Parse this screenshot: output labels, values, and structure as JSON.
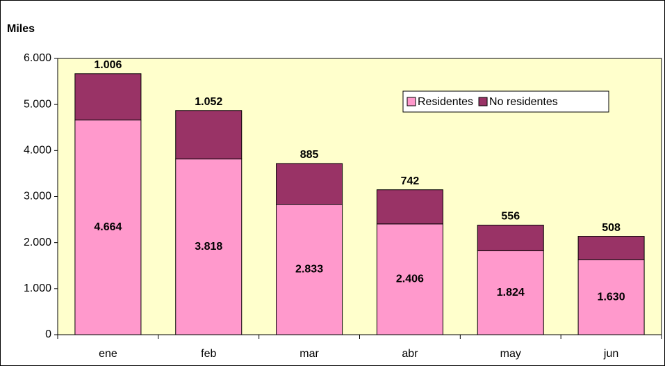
{
  "chart_data": {
    "type": "stacked_bar",
    "y_axis_label": "Miles",
    "categories": [
      "ene",
      "feb",
      "mar",
      "abr",
      "may",
      "jun"
    ],
    "series": [
      {
        "name": "Residentes",
        "color": "#ff99cc",
        "values": [
          4664,
          3818,
          2833,
          2406,
          1824,
          1630
        ],
        "value_labels": [
          "4.664",
          "3.818",
          "2.833",
          "2.406",
          "1.824",
          "1.630"
        ]
      },
      {
        "name": "No residentes",
        "color": "#993366",
        "values": [
          1006,
          1052,
          885,
          742,
          556,
          508
        ],
        "value_labels": [
          "1.006",
          "1.052",
          "885",
          "742",
          "556",
          "508"
        ]
      }
    ],
    "ylim": [
      0,
      6000
    ],
    "yticks": [
      0,
      {
        "value": 1000,
        "label": "1.000"
      },
      {
        "value": 2000,
        "label": "2.000"
      },
      {
        "value": 3000,
        "label": "3.000"
      },
      {
        "value": 4000,
        "label": "4.000"
      },
      {
        "value": 5000,
        "label": "5.000"
      },
      {
        "value": 6000,
        "label": "6.000"
      }
    ],
    "grid": false,
    "plot_background": "#ffffcc",
    "legend": "top-right"
  }
}
